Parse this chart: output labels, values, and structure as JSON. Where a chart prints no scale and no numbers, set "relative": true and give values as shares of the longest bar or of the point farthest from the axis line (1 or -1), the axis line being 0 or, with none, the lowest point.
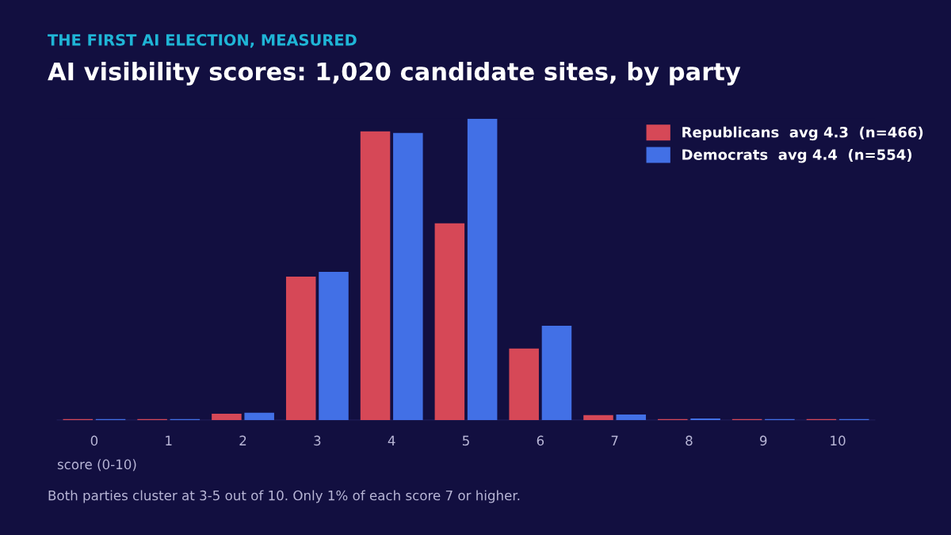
{
  "chart_data": {
    "type": "bar",
    "subtitle": "THE FIRST AI ELECTION, MEASURED",
    "title": "AI visibility scores: 1,020 candidate sites, by party",
    "xlabel": "score (0-10)",
    "categories": [
      "0",
      "1",
      "2",
      "3",
      "4",
      "5",
      "6",
      "7",
      "8",
      "9",
      "10"
    ],
    "series": [
      {
        "name": "Republicans  avg 4.3  (n=466)",
        "color": "#d64857",
        "values": [
          0.003,
          0.003,
          0.021,
          0.476,
          0.958,
          0.653,
          0.237,
          0.016,
          0.003,
          0.003,
          0.003
        ]
      },
      {
        "name": "Democrats  avg 4.4  (n=554)",
        "color": "#4270e6",
        "values": [
          0.003,
          0.003,
          0.024,
          0.492,
          0.953,
          1,
          0.313,
          0.018,
          0.005,
          0.003,
          0.003
        ]
      }
    ],
    "relative": true,
    "legend": "top right",
    "grid": false,
    "annotations": [
      "Both parties cluster at 3-5 out of 10. Only 1% of each score 7 or higher."
    ]
  }
}
